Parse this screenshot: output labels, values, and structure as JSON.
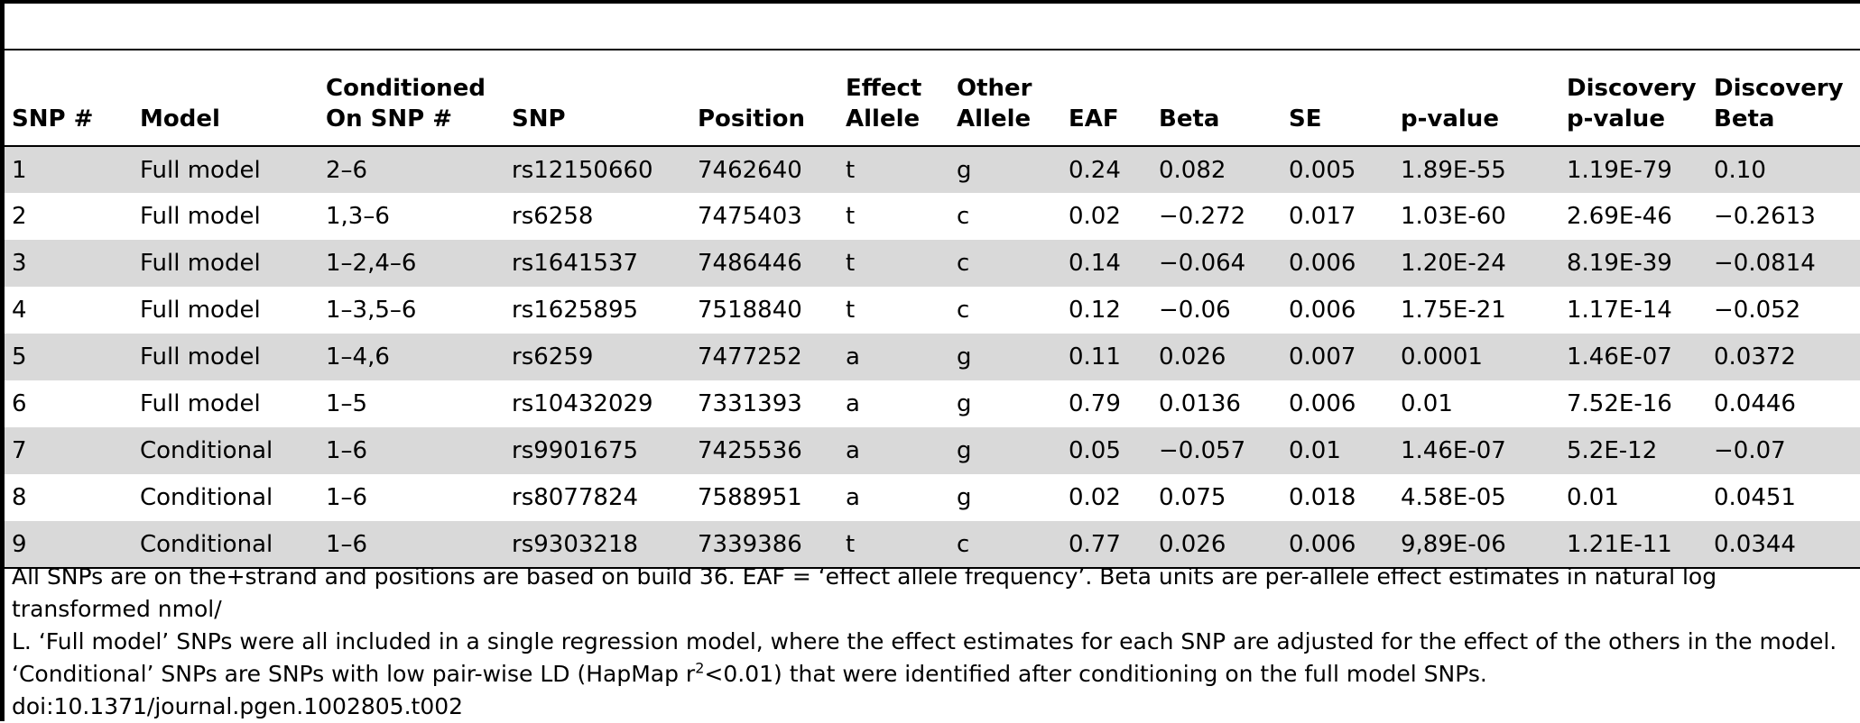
{
  "table": {
    "headers": [
      "SNP #",
      "Model",
      "Conditioned On SNP #",
      "SNP",
      "Position",
      "Effect Allele",
      "Other Allele",
      "EAF",
      "Beta",
      "SE",
      "p-value",
      "Discovery p-value",
      "Discovery Beta"
    ],
    "rows": [
      [
        "1",
        "Full model",
        "2–6",
        "rs12150660",
        "7462640",
        "t",
        "g",
        "0.24",
        "0.082",
        "0.005",
        "1.89E-55",
        "1.19E-79",
        "0.10"
      ],
      [
        "2",
        "Full model",
        "1,3–6",
        "rs6258",
        "7475403",
        "t",
        "c",
        "0.02",
        "−0.272",
        "0.017",
        "1.03E-60",
        "2.69E-46",
        "−0.2613"
      ],
      [
        "3",
        "Full model",
        "1–2,4–6",
        "rs1641537",
        "7486446",
        "t",
        "c",
        "0.14",
        "−0.064",
        "0.006",
        "1.20E-24",
        "8.19E-39",
        "−0.0814"
      ],
      [
        "4",
        "Full model",
        "1–3,5–6",
        "rs1625895",
        "7518840",
        "t",
        "c",
        "0.12",
        "−0.06",
        "0.006",
        "1.75E-21",
        "1.17E-14",
        "−0.052"
      ],
      [
        "5",
        "Full model",
        "1–4,6",
        "rs6259",
        "7477252",
        "a",
        "g",
        "0.11",
        "0.026",
        "0.007",
        "0.0001",
        "1.46E-07",
        "0.0372"
      ],
      [
        "6",
        "Full model",
        "1–5",
        "rs10432029",
        "7331393",
        "a",
        "g",
        "0.79",
        "0.0136",
        "0.006",
        "0.01",
        "7.52E-16",
        "0.0446"
      ],
      [
        "7",
        "Conditional",
        "1–6",
        "rs9901675",
        "7425536",
        "a",
        "g",
        "0.05",
        "−0.057",
        "0.01",
        "1.46E-07",
        "5.2E-12",
        "−0.07"
      ],
      [
        "8",
        "Conditional",
        "1–6",
        "rs8077824",
        "7588951",
        "a",
        "g",
        "0.02",
        "0.075",
        "0.018",
        "4.58E-05",
        "0.01",
        "0.0451"
      ],
      [
        "9",
        "Conditional",
        "1–6",
        "rs9303218",
        "7339386",
        "t",
        "c",
        "0.77",
        "0.026",
        "0.006",
        "9,89E-06",
        "1.21E-11",
        "0.0344"
      ]
    ]
  },
  "footnote": {
    "line1": "All SNPs are on the+strand and positions are based on build 36. EAF = ‘effect allele frequency’. Beta units are per-allele effect estimates in natural log transformed nmol/",
    "line2": "L. ‘Full model’ SNPs were all included in a single regression model, where the effect estimates for each SNP are adjusted for the effect of the others in the model.",
    "line3_before": "‘Conditional’ SNPs are SNPs with low pair-wise LD (HapMap r",
    "line3_sup": "2",
    "line3_after": "<0.01) that were identified after conditioning on the full model SNPs.",
    "doi": "doi:10.1371/journal.pgen.1002805.t002"
  }
}
